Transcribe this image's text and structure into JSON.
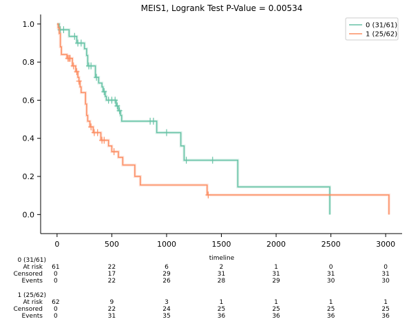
{
  "chart_data": {
    "type": "line",
    "subtype": "kaplan-meier",
    "title": "MEIS1, Logrank Test P-Value = 0.00534",
    "xlabel": "timeline",
    "ylabel": "",
    "xlim": [
      -150,
      3150
    ],
    "ylim": [
      -0.1,
      1.05
    ],
    "x_ticks": [
      0,
      500,
      1000,
      1500,
      2000,
      2500,
      3000
    ],
    "y_ticks": [
      0.0,
      0.2,
      0.4,
      0.6,
      0.8,
      1.0
    ],
    "x_tick_labels": [
      "0",
      "500",
      "1000",
      "1500",
      "2000",
      "2500",
      "3000"
    ],
    "y_tick_labels": [
      "0.0",
      "0.2",
      "0.4",
      "0.6",
      "0.8",
      "1.0"
    ],
    "grid": false,
    "legend_position": "top-right",
    "series": [
      {
        "name": "0 (31/61)",
        "color": "#66c2a5",
        "steps": [
          [
            0,
            1.0
          ],
          [
            20,
            0.97
          ],
          [
            80,
            0.97
          ],
          [
            110,
            0.935
          ],
          [
            170,
            0.935
          ],
          [
            180,
            0.9
          ],
          [
            240,
            0.9
          ],
          [
            250,
            0.87
          ],
          [
            270,
            0.835
          ],
          [
            280,
            0.78
          ],
          [
            320,
            0.78
          ],
          [
            350,
            0.72
          ],
          [
            370,
            0.72
          ],
          [
            380,
            0.69
          ],
          [
            410,
            0.67
          ],
          [
            420,
            0.645
          ],
          [
            440,
            0.62
          ],
          [
            450,
            0.6
          ],
          [
            520,
            0.6
          ],
          [
            540,
            0.57
          ],
          [
            560,
            0.545
          ],
          [
            580,
            0.52
          ],
          [
            590,
            0.49
          ],
          [
            900,
            0.49
          ],
          [
            910,
            0.43
          ],
          [
            1120,
            0.43
          ],
          [
            1130,
            0.36
          ],
          [
            1150,
            0.36
          ],
          [
            1160,
            0.285
          ],
          [
            1640,
            0.285
          ],
          [
            1650,
            0.145
          ],
          [
            2490,
            0.145
          ],
          [
            2490,
            0.0
          ]
        ],
        "censors": [
          [
            30,
            0.97
          ],
          [
            60,
            0.97
          ],
          [
            160,
            0.935
          ],
          [
            190,
            0.9
          ],
          [
            220,
            0.9
          ],
          [
            290,
            0.78
          ],
          [
            310,
            0.78
          ],
          [
            360,
            0.72
          ],
          [
            430,
            0.645
          ],
          [
            470,
            0.6
          ],
          [
            500,
            0.6
          ],
          [
            530,
            0.6
          ],
          [
            550,
            0.57
          ],
          [
            570,
            0.545
          ],
          [
            850,
            0.49
          ],
          [
            880,
            0.49
          ],
          [
            1000,
            0.43
          ],
          [
            1180,
            0.285
          ],
          [
            1420,
            0.285
          ]
        ]
      },
      {
        "name": "1 (25/62)",
        "color": "#fc8d62",
        "steps": [
          [
            0,
            1.0
          ],
          [
            10,
            0.98
          ],
          [
            20,
            0.95
          ],
          [
            30,
            0.88
          ],
          [
            40,
            0.84
          ],
          [
            80,
            0.84
          ],
          [
            90,
            0.82
          ],
          [
            130,
            0.82
          ],
          [
            140,
            0.78
          ],
          [
            160,
            0.78
          ],
          [
            170,
            0.75
          ],
          [
            190,
            0.72
          ],
          [
            200,
            0.7
          ],
          [
            210,
            0.67
          ],
          [
            220,
            0.64
          ],
          [
            250,
            0.64
          ],
          [
            260,
            0.58
          ],
          [
            270,
            0.52
          ],
          [
            280,
            0.49
          ],
          [
            300,
            0.46
          ],
          [
            330,
            0.43
          ],
          [
            390,
            0.43
          ],
          [
            400,
            0.39
          ],
          [
            460,
            0.39
          ],
          [
            470,
            0.36
          ],
          [
            490,
            0.36
          ],
          [
            500,
            0.33
          ],
          [
            550,
            0.33
          ],
          [
            560,
            0.3
          ],
          [
            590,
            0.3
          ],
          [
            600,
            0.26
          ],
          [
            700,
            0.26
          ],
          [
            710,
            0.2
          ],
          [
            750,
            0.2
          ],
          [
            760,
            0.155
          ],
          [
            1360,
            0.155
          ],
          [
            1370,
            0.103
          ],
          [
            3030,
            0.103
          ],
          [
            3030,
            0.0
          ]
        ],
        "censors": [
          [
            100,
            0.82
          ],
          [
            110,
            0.82
          ],
          [
            120,
            0.82
          ],
          [
            150,
            0.78
          ],
          [
            180,
            0.75
          ],
          [
            200,
            0.7
          ],
          [
            310,
            0.46
          ],
          [
            340,
            0.43
          ],
          [
            370,
            0.43
          ],
          [
            410,
            0.39
          ],
          [
            430,
            0.39
          ],
          [
            520,
            0.33
          ],
          [
            1380,
            0.103
          ]
        ]
      }
    ],
    "at_risk_tables": [
      {
        "group": "0 (31/61)",
        "rows": [
          {
            "label": "At risk",
            "values": [
              "61",
              "22",
              "6",
              "2",
              "1",
              "0",
              "0"
            ]
          },
          {
            "label": "Censored",
            "values": [
              "0",
              "17",
              "29",
              "31",
              "31",
              "31",
              "31"
            ]
          },
          {
            "label": "Events",
            "values": [
              "0",
              "22",
              "26",
              "28",
              "29",
              "30",
              "30"
            ]
          }
        ]
      },
      {
        "group": "1 (25/62)",
        "rows": [
          {
            "label": "At risk",
            "values": [
              "62",
              "9",
              "3",
              "1",
              "1",
              "1",
              "1"
            ]
          },
          {
            "label": "Censored",
            "values": [
              "0",
              "22",
              "24",
              "25",
              "25",
              "25",
              "25"
            ]
          },
          {
            "label": "Events",
            "values": [
              "0",
              "31",
              "35",
              "36",
              "36",
              "36",
              "36"
            ]
          }
        ]
      }
    ]
  }
}
